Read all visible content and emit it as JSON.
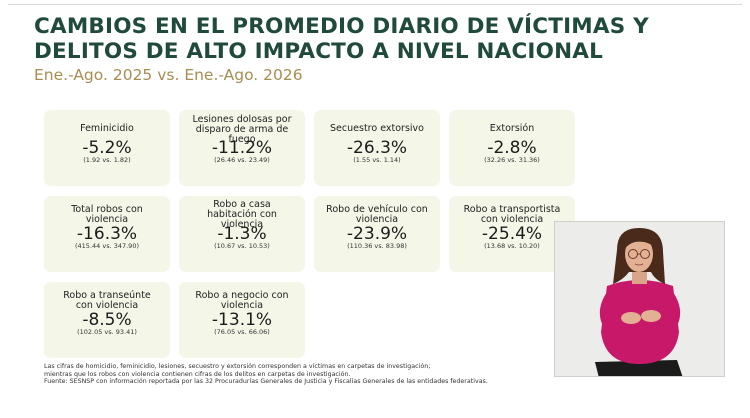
{
  "title_line1": "CAMBIOS EN EL PROMEDIO DIARIO DE VÍCTIMAS Y",
  "title_line2": "DELITOS DE ALTO IMPACTO A NIVEL NACIONAL",
  "subtitle": "Ene.-Ago. 2025 vs. Ene.-Ago. 2026",
  "colors": {
    "title": "#1f4a3c",
    "subtitle": "#a88d52",
    "card_bg": "#f4f6e8",
    "interpreter_shirt": "#c8186a"
  },
  "cards": [
    {
      "label_lines": [
        "Feminicidio"
      ],
      "change": "-5.2%",
      "range": "(1.92 vs. 1.82)"
    },
    {
      "label_lines": [
        "Lesiones dolosas por",
        "disparo de arma de",
        "fuego"
      ],
      "change": "-11.2%",
      "range": "(26.46 vs. 23.49)"
    },
    {
      "label_lines": [
        "Secuestro extorsivo"
      ],
      "change": "-26.3%",
      "range": "(1.55 vs. 1.14)"
    },
    {
      "label_lines": [
        "Extorsión"
      ],
      "change": "-2.8%",
      "range": "(32.26 vs. 31.36)"
    },
    {
      "label_lines": [
        "Total robos con",
        "violencia"
      ],
      "change": "-16.3%",
      "range": "(415.44 vs. 347.90)"
    },
    {
      "label_lines": [
        "Robo a casa",
        "habitación con",
        "violencia"
      ],
      "change": "-1.3%",
      "range": "(10.67 vs. 10.53)"
    },
    {
      "label_lines": [
        "Robo de vehículo con",
        "violencia"
      ],
      "change": "-23.9%",
      "range": "(110.36 vs. 83.98)"
    },
    {
      "label_lines": [
        "Robo a transportista",
        "con violencia"
      ],
      "change": "-25.4%",
      "range": "(13.68 vs. 10.20)"
    },
    {
      "label_lines": [
        "Robo a transeúnte",
        "con violencia"
      ],
      "change": "-8.5%",
      "range": "(102.05 vs. 93.41)"
    },
    {
      "label_lines": [
        "Robo a negocio con",
        "violencia"
      ],
      "change": "-13.1%",
      "range": "(76.05 vs. 66.06)"
    }
  ],
  "footnote_lines": [
    "Las cifras de homicidio, feminicidio, lesiones, secuestro y extorsión corresponden a víctimas en carpetas de investigación;",
    "mientras que los robos con violencia contienen cifras de los delitos en carpetas de investigación.",
    "Fuente: SESNSP con información reportada por las 32 Procuradurías Generales de Justicia y Fiscalías Generales de las entidades federativas."
  ],
  "interpreter_video": {
    "icon": "sign-language-interpreter"
  }
}
